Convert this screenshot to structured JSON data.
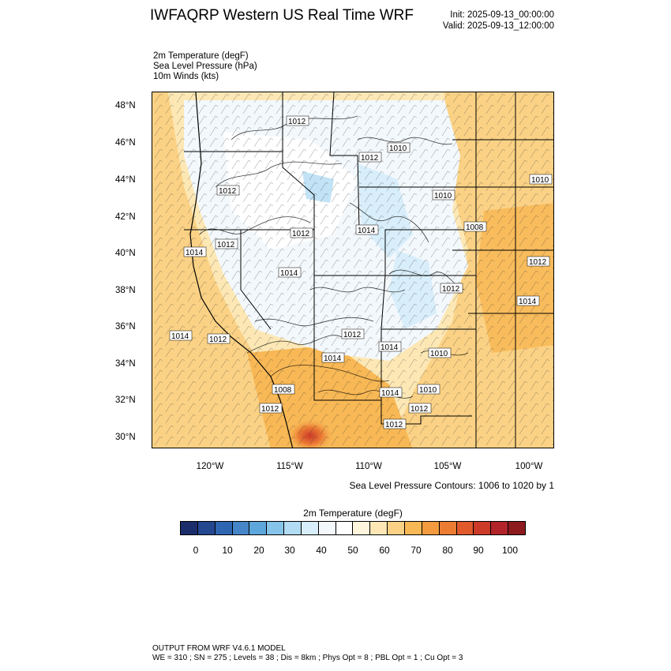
{
  "header": {
    "title": "IWFAQRP Western US Real Time WRF",
    "init": "Init: 2025-09-13_00:00:00",
    "valid": "Valid: 2025-09-13_12:00:00"
  },
  "fields": [
    "2m Temperature   (degF)",
    "Sea Level Pressure   (hPa)",
    "10m Winds   (kts)"
  ],
  "axes": {
    "lat_labels": [
      "48°N",
      "46°N",
      "44°N",
      "42°N",
      "40°N",
      "38°N",
      "36°N",
      "34°N",
      "32°N",
      "30°N"
    ],
    "lon_labels": [
      "120°W",
      "115°W",
      "110°W",
      "105°W",
      "100°W"
    ]
  },
  "map": {
    "pressure_labels": [
      "1012",
      "1010",
      "1012",
      "1012",
      "1010",
      "1010",
      "1008",
      "1012",
      "1014",
      "1014",
      "1012",
      "1012",
      "1014",
      "1014",
      "1012",
      "1014",
      "1014",
      "1012",
      "1012",
      "1014",
      "1010",
      "1008",
      "1012",
      "1014",
      "1012",
      "1010",
      "1012"
    ]
  },
  "slp_note": "Sea Level Pressure Contours: 1006 to 1020 by 1",
  "colorbar": {
    "title": "2m Temperature  (degF)",
    "colors": [
      "#1c2d6b",
      "#24488f",
      "#2f66b2",
      "#4585c8",
      "#5ea7dd",
      "#86c4ea",
      "#b2dcf3",
      "#d8eefa",
      "#f3f8fc",
      "#ffffff",
      "#fff6dd",
      "#fde8b5",
      "#fbd285",
      "#f8b855",
      "#f39b3e",
      "#ec7c34",
      "#e05a2c",
      "#cc3a28",
      "#b2232a",
      "#8c1a1f"
    ],
    "labels": [
      "0",
      "10",
      "20",
      "30",
      "40",
      "50",
      "60",
      "70",
      "80",
      "90",
      "100"
    ]
  },
  "footer": {
    "line1": "OUTPUT FROM WRF V4.6.1 MODEL",
    "line2": "WE = 310 ; SN = 275 ; Levels = 38 ; Dis = 8km ; Phys Opt = 8 ; PBL Opt = 1 ; Cu Opt = 3"
  }
}
